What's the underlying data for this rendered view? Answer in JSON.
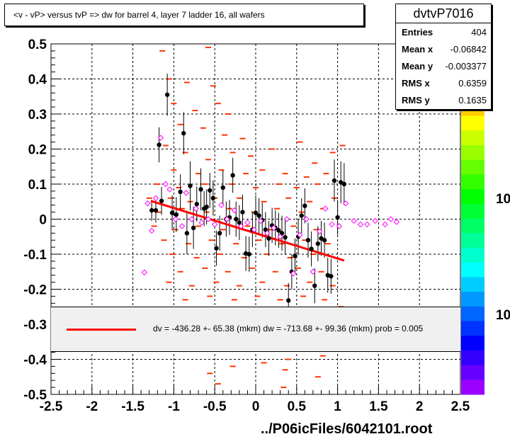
{
  "title": "<v - vP>       versus  tvP =>  dw for barrel 4, layer 7 ladder 16, all wafers",
  "stats": {
    "name": "dvtvP7016",
    "rows": [
      {
        "k": "Entries",
        "v": "404"
      },
      {
        "k": "Mean x",
        "v": "-0.06842"
      },
      {
        "k": "Mean y",
        "v": "-0.003377"
      },
      {
        "k": "RMS x",
        "v": "0.6359"
      },
      {
        "k": "RMS y",
        "v": "0.1635"
      }
    ]
  },
  "legend": {
    "text": "dv = -436.28 +- 65.38 (mkm) dw = -713.68 +- 99.36 (mkm) prob = 0.005"
  },
  "footer": "../P06icFiles/6042101.root",
  "palette_labels": [
    "10",
    "10"
  ],
  "colors": {
    "fit": "#ff0000",
    "hist": "#ff3300",
    "profile": "#000000",
    "markers": "#ff00ff"
  },
  "chart_data": {
    "type": "scatter",
    "xlim": [
      -2.5,
      2.5
    ],
    "ylim": [
      -0.5,
      0.5
    ],
    "x_ticks": [
      "-2.5",
      "-2",
      "-1.5",
      "-1",
      "-0.5",
      "0",
      "0.5",
      "1",
      "1.5",
      "2",
      "2.5"
    ],
    "y_ticks": [
      "0.5",
      "0.4",
      "0.3",
      "0.2",
      "0.1",
      "0",
      "-0.1",
      "-0.2",
      "-0.3",
      "-0.4",
      "-0.5"
    ],
    "grid": true,
    "fit_line": {
      "x": [
        -1.28,
        1.08
      ],
      "y": [
        0.052,
        -0.118
      ]
    },
    "profile_black": [
      {
        "x": -1.27,
        "y": 0.025,
        "e": 0.03
      },
      {
        "x": -1.22,
        "y": 0.025,
        "e": 0.035
      },
      {
        "x": -1.18,
        "y": 0.212,
        "e": 0.05
      },
      {
        "x": -1.15,
        "y": 0.052,
        "e": 0.04
      },
      {
        "x": -1.08,
        "y": 0.355,
        "e": 0.06
      },
      {
        "x": -1.02,
        "y": 0.018,
        "e": 0.05
      },
      {
        "x": -0.97,
        "y": 0.013,
        "e": 0.05
      },
      {
        "x": -0.92,
        "y": 0.078,
        "e": 0.05
      },
      {
        "x": -0.88,
        "y": 0.245,
        "e": 0.06
      },
      {
        "x": -0.84,
        "y": -0.04,
        "e": 0.06
      },
      {
        "x": -0.8,
        "y": 0.095,
        "e": 0.07
      },
      {
        "x": -0.76,
        "y": -0.025,
        "e": 0.06
      },
      {
        "x": -0.72,
        "y": 0.043,
        "e": 0.05
      },
      {
        "x": -0.67,
        "y": 0.085,
        "e": 0.06
      },
      {
        "x": -0.63,
        "y": 0.03,
        "e": 0.05
      },
      {
        "x": -0.6,
        "y": 0.035,
        "e": 0.05
      },
      {
        "x": -0.56,
        "y": 0.082,
        "e": 0.05
      },
      {
        "x": -0.52,
        "y": 0.06,
        "e": 0.05
      },
      {
        "x": -0.48,
        "y": -0.083,
        "e": 0.05
      },
      {
        "x": -0.44,
        "y": -0.04,
        "e": 0.05
      },
      {
        "x": -0.4,
        "y": 0.09,
        "e": 0.05
      },
      {
        "x": -0.36,
        "y": 0.0,
        "e": 0.05
      },
      {
        "x": -0.32,
        "y": 0.005,
        "e": 0.05
      },
      {
        "x": -0.28,
        "y": 0.125,
        "e": 0.05
      },
      {
        "x": -0.24,
        "y": 0.0,
        "e": 0.05
      },
      {
        "x": -0.2,
        "y": -0.01,
        "e": 0.05
      },
      {
        "x": -0.16,
        "y": 0.02,
        "e": 0.05
      },
      {
        "x": -0.12,
        "y": -0.098,
        "e": 0.05
      },
      {
        "x": -0.08,
        "y": -0.1,
        "e": 0.05
      },
      {
        "x": -0.04,
        "y": -0.03,
        "e": 0.05
      },
      {
        "x": 0.0,
        "y": 0.018,
        "e": 0.05
      },
      {
        "x": 0.04,
        "y": 0.01,
        "e": 0.05
      },
      {
        "x": 0.08,
        "y": -0.003,
        "e": 0.05
      },
      {
        "x": 0.12,
        "y": -0.03,
        "e": 0.05
      },
      {
        "x": 0.16,
        "y": -0.055,
        "e": 0.05
      },
      {
        "x": 0.2,
        "y": -0.018,
        "e": 0.05
      },
      {
        "x": 0.24,
        "y": -0.025,
        "e": 0.05
      },
      {
        "x": 0.28,
        "y": -0.032,
        "e": 0.05
      },
      {
        "x": 0.32,
        "y": -0.04,
        "e": 0.05
      },
      {
        "x": 0.36,
        "y": -0.052,
        "e": 0.05
      },
      {
        "x": 0.4,
        "y": -0.232,
        "e": 0.05
      },
      {
        "x": 0.44,
        "y": -0.15,
        "e": 0.05
      },
      {
        "x": 0.48,
        "y": -0.105,
        "e": 0.05
      },
      {
        "x": 0.52,
        "y": -0.05,
        "e": 0.05
      },
      {
        "x": 0.56,
        "y": 0.01,
        "e": 0.05
      },
      {
        "x": 0.6,
        "y": 0.038,
        "e": 0.05
      },
      {
        "x": 0.64,
        "y": -0.06,
        "e": 0.05
      },
      {
        "x": 0.68,
        "y": -0.085,
        "e": 0.05
      },
      {
        "x": 0.72,
        "y": -0.19,
        "e": 0.05
      },
      {
        "x": 0.76,
        "y": -0.07,
        "e": 0.05
      },
      {
        "x": 0.8,
        "y": -0.055,
        "e": 0.05
      },
      {
        "x": 0.84,
        "y": -0.06,
        "e": 0.05
      },
      {
        "x": 0.88,
        "y": -0.16,
        "e": 0.05
      },
      {
        "x": 0.92,
        "y": -0.163,
        "e": 0.05
      },
      {
        "x": 0.96,
        "y": 0.11,
        "e": 0.06
      },
      {
        "x": 1.0,
        "y": 0.005,
        "e": 0.05
      },
      {
        "x": 1.04,
        "y": 0.105,
        "e": 0.06
      },
      {
        "x": 1.08,
        "y": 0.1,
        "e": 0.06
      }
    ],
    "profile_magenta": [
      {
        "x": -1.36,
        "y": -0.152
      },
      {
        "x": -1.32,
        "y": 0.045
      },
      {
        "x": -1.27,
        "y": -0.033
      },
      {
        "x": -1.22,
        "y": 0.06
      },
      {
        "x": -1.16,
        "y": 0.232
      },
      {
        "x": -1.1,
        "y": 0.1
      },
      {
        "x": -1.05,
        "y": 0.085
      },
      {
        "x": -0.98,
        "y": 0.0
      },
      {
        "x": -0.9,
        "y": -0.02
      },
      {
        "x": -0.85,
        "y": 0.075
      },
      {
        "x": -0.78,
        "y": 0.0
      },
      {
        "x": -0.73,
        "y": 0.03
      },
      {
        "x": -0.66,
        "y": -0.01
      },
      {
        "x": -0.58,
        "y": 0.0
      },
      {
        "x": -0.5,
        "y": -0.015
      },
      {
        "x": -0.42,
        "y": 0.04
      },
      {
        "x": -0.35,
        "y": 0.0
      },
      {
        "x": -0.26,
        "y": 0.025
      },
      {
        "x": -0.18,
        "y": -0.02
      },
      {
        "x": -0.1,
        "y": -0.01
      },
      {
        "x": -0.02,
        "y": -0.03
      },
      {
        "x": 0.06,
        "y": -0.005
      },
      {
        "x": 0.14,
        "y": -0.04
      },
      {
        "x": 0.22,
        "y": -0.025
      },
      {
        "x": 0.3,
        "y": -0.05
      },
      {
        "x": 0.38,
        "y": 0.0
      },
      {
        "x": 0.46,
        "y": -0.155
      },
      {
        "x": 0.54,
        "y": -0.045
      },
      {
        "x": 0.62,
        "y": 0.0
      },
      {
        "x": 0.7,
        "y": -0.15
      },
      {
        "x": 0.78,
        "y": -0.035
      },
      {
        "x": 0.85,
        "y": 0.03
      },
      {
        "x": 0.93,
        "y": -0.015
      },
      {
        "x": 1.02,
        "y": -0.02
      },
      {
        "x": 1.1,
        "y": 0.045
      },
      {
        "x": 1.2,
        "y": -0.005
      },
      {
        "x": 1.28,
        "y": -0.015
      },
      {
        "x": 1.36,
        "y": -0.015
      },
      {
        "x": 1.46,
        "y": -0.005
      },
      {
        "x": 1.58,
        "y": -0.015
      },
      {
        "x": 1.65,
        "y": 0.0
      },
      {
        "x": 1.72,
        "y": -0.008
      }
    ],
    "hist_dashes": [
      {
        "x": -1.14,
        "y": 0.48
      },
      {
        "x": -0.58,
        "y": 0.49
      },
      {
        "x": -1.06,
        "y": 0.4
      },
      {
        "x": -0.84,
        "y": 0.39
      },
      {
        "x": -0.52,
        "y": 0.38
      },
      {
        "x": -1.0,
        "y": 0.33
      },
      {
        "x": -0.74,
        "y": 0.31
      },
      {
        "x": -0.46,
        "y": 0.33
      },
      {
        "x": -0.34,
        "y": 0.3
      },
      {
        "x": -0.92,
        "y": 0.27
      },
      {
        "x": -0.64,
        "y": 0.26
      },
      {
        "x": -0.38,
        "y": 0.24
      },
      {
        "x": -0.16,
        "y": 0.23
      },
      {
        "x": -1.1,
        "y": 0.21
      },
      {
        "x": -0.86,
        "y": 0.19
      },
      {
        "x": -0.58,
        "y": 0.17
      },
      {
        "x": -0.28,
        "y": 0.19
      },
      {
        "x": -0.06,
        "y": 0.18
      },
      {
        "x": 0.2,
        "y": 0.2
      },
      {
        "x": 0.54,
        "y": 0.22
      },
      {
        "x": 0.72,
        "y": 0.16
      },
      {
        "x": 0.94,
        "y": 0.19
      },
      {
        "x": 1.06,
        "y": 0.21
      },
      {
        "x": -1.0,
        "y": 0.14
      },
      {
        "x": -0.7,
        "y": 0.13
      },
      {
        "x": -0.42,
        "y": 0.14
      },
      {
        "x": -0.12,
        "y": 0.13
      },
      {
        "x": 0.08,
        "y": 0.14
      },
      {
        "x": 0.36,
        "y": 0.13
      },
      {
        "x": 0.62,
        "y": 0.12
      },
      {
        "x": 0.86,
        "y": 0.13
      },
      {
        "x": -1.2,
        "y": 0.1
      },
      {
        "x": -0.94,
        "y": 0.09
      },
      {
        "x": -0.62,
        "y": 0.1
      },
      {
        "x": -0.3,
        "y": 0.1
      },
      {
        "x": 0.0,
        "y": 0.09
      },
      {
        "x": 0.28,
        "y": 0.1
      },
      {
        "x": 0.5,
        "y": 0.09
      },
      {
        "x": 0.76,
        "y": 0.1
      },
      {
        "x": -1.3,
        "y": 0.06
      },
      {
        "x": -1.04,
        "y": 0.06
      },
      {
        "x": -0.8,
        "y": 0.05
      },
      {
        "x": -0.5,
        "y": 0.06
      },
      {
        "x": -0.2,
        "y": 0.06
      },
      {
        "x": 0.1,
        "y": 0.05
      },
      {
        "x": 0.4,
        "y": 0.06
      },
      {
        "x": 0.66,
        "y": 0.05
      },
      {
        "x": 0.96,
        "y": 0.06
      },
      {
        "x": -1.18,
        "y": 0.02
      },
      {
        "x": -0.9,
        "y": 0.03
      },
      {
        "x": -0.6,
        "y": 0.02
      },
      {
        "x": -0.32,
        "y": 0.03
      },
      {
        "x": -0.02,
        "y": 0.02
      },
      {
        "x": 0.26,
        "y": 0.03
      },
      {
        "x": 0.56,
        "y": 0.02
      },
      {
        "x": 0.82,
        "y": 0.03
      },
      {
        "x": -1.24,
        "y": -0.02
      },
      {
        "x": -0.98,
        "y": -0.03
      },
      {
        "x": -0.7,
        "y": -0.02
      },
      {
        "x": -0.4,
        "y": -0.03
      },
      {
        "x": -0.1,
        "y": -0.02
      },
      {
        "x": 0.18,
        "y": -0.03
      },
      {
        "x": 0.46,
        "y": -0.02
      },
      {
        "x": 0.74,
        "y": -0.03
      },
      {
        "x": -1.12,
        "y": -0.06
      },
      {
        "x": -0.82,
        "y": -0.07
      },
      {
        "x": -0.54,
        "y": -0.06
      },
      {
        "x": -0.24,
        "y": -0.07
      },
      {
        "x": 0.04,
        "y": -0.06
      },
      {
        "x": 0.32,
        "y": -0.07
      },
      {
        "x": 0.6,
        "y": -0.06
      },
      {
        "x": 0.88,
        "y": -0.07
      },
      {
        "x": -1.02,
        "y": -0.1
      },
      {
        "x": -0.72,
        "y": -0.11
      },
      {
        "x": -0.44,
        "y": -0.1
      },
      {
        "x": -0.14,
        "y": -0.11
      },
      {
        "x": 0.14,
        "y": -0.1
      },
      {
        "x": 0.42,
        "y": -0.11
      },
      {
        "x": 0.7,
        "y": -0.1
      },
      {
        "x": -0.92,
        "y": -0.15
      },
      {
        "x": -0.62,
        "y": -0.14
      },
      {
        "x": -0.34,
        "y": -0.15
      },
      {
        "x": -0.04,
        "y": -0.14
      },
      {
        "x": 0.24,
        "y": -0.15
      },
      {
        "x": 0.52,
        "y": -0.14
      },
      {
        "x": 0.8,
        "y": -0.15
      },
      {
        "x": -1.06,
        "y": -0.18
      },
      {
        "x": -0.78,
        "y": -0.19
      },
      {
        "x": -0.48,
        "y": -0.18
      },
      {
        "x": -0.2,
        "y": -0.19
      },
      {
        "x": 0.08,
        "y": -0.18
      },
      {
        "x": 0.38,
        "y": -0.19
      },
      {
        "x": 0.66,
        "y": -0.18
      },
      {
        "x": 0.94,
        "y": -0.19
      },
      {
        "x": -0.86,
        "y": -0.23
      },
      {
        "x": -0.56,
        "y": -0.22
      },
      {
        "x": -0.26,
        "y": -0.23
      },
      {
        "x": 0.02,
        "y": -0.22
      },
      {
        "x": 0.3,
        "y": -0.23
      },
      {
        "x": 0.58,
        "y": -0.22
      },
      {
        "x": 0.84,
        "y": -0.23
      },
      {
        "x": 1.04,
        "y": -0.25
      },
      {
        "x": -0.28,
        "y": -0.42
      },
      {
        "x": 0.1,
        "y": -0.41
      },
      {
        "x": 0.36,
        "y": -0.43
      },
      {
        "x": 0.4,
        "y": -0.4
      },
      {
        "x": -0.56,
        "y": -0.44
      },
      {
        "x": 0.82,
        "y": -0.39
      },
      {
        "x": -0.46,
        "y": -0.47
      },
      {
        "x": 0.34,
        "y": -0.48
      },
      {
        "x": 0.76,
        "y": -0.45
      }
    ]
  }
}
